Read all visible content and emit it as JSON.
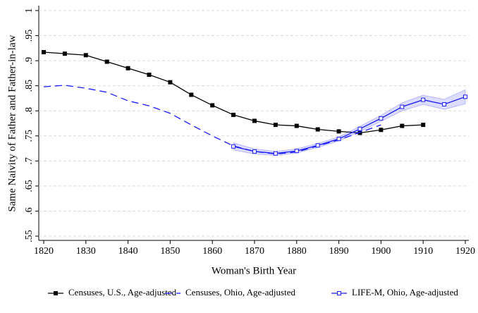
{
  "chart_data": {
    "type": "line",
    "xlabel": "Woman's Birth Year",
    "ylabel": "Same Naivity of Father and Father-in-law",
    "xlim": [
      1820,
      1920
    ],
    "xticks": [
      1820,
      1830,
      1840,
      1850,
      1860,
      1870,
      1880,
      1890,
      1900,
      1910,
      1920
    ],
    "ylim": [
      0.55,
      1
    ],
    "yticks": [
      {
        "value": 0.55,
        "label": ".55"
      },
      {
        "value": 0.6,
        "label": ".6"
      },
      {
        "value": 0.65,
        "label": ".65"
      },
      {
        "value": 0.7,
        "label": ".7"
      },
      {
        "value": 0.75,
        "label": ".75"
      },
      {
        "value": 0.8,
        "label": ".8"
      },
      {
        "value": 0.85,
        "label": ".85"
      },
      {
        "value": 0.9,
        "label": ".9"
      },
      {
        "value": 0.95,
        "label": ".95"
      },
      1
    ],
    "grid": true,
    "legend": "bottom",
    "series": [
      {
        "name": "Censuses, U.S., Age-adjusted",
        "color": "#000000",
        "marker": "square",
        "dashed": false,
        "x": [
          1820,
          1825,
          1830,
          1835,
          1840,
          1845,
          1850,
          1855,
          1860,
          1865,
          1870,
          1875,
          1880,
          1885,
          1890,
          1895,
          1900,
          1905,
          1910
        ],
        "values": [
          0.917,
          0.914,
          0.911,
          0.898,
          0.885,
          0.872,
          0.857,
          0.832,
          0.811,
          0.792,
          0.78,
          0.772,
          0.77,
          0.763,
          0.759,
          0.756,
          0.762,
          0.77,
          0.772
        ]
      },
      {
        "name": "Censuses, Ohio, Age-adjusted",
        "color": "#1a1aff",
        "marker": null,
        "dashed": true,
        "x": [
          1820,
          1825,
          1830,
          1835,
          1840,
          1845,
          1850,
          1855,
          1860,
          1865,
          1870,
          1875,
          1880,
          1885,
          1890,
          1895,
          1900
        ],
        "values": [
          0.848,
          0.851,
          0.845,
          0.837,
          0.82,
          0.81,
          0.795,
          0.772,
          0.75,
          0.73,
          0.719,
          0.714,
          0.718,
          0.73,
          0.742,
          0.757,
          0.772
        ]
      },
      {
        "name": "LIFE-M, Ohio, Age-adjusted",
        "color": "#1a1aff",
        "marker": "hollow-square",
        "dashed": false,
        "x": [
          1865,
          1870,
          1875,
          1880,
          1885,
          1890,
          1895,
          1900,
          1905,
          1910,
          1915,
          1920
        ],
        "values": [
          0.729,
          0.719,
          0.715,
          0.72,
          0.731,
          0.744,
          0.764,
          0.785,
          0.808,
          0.822,
          0.813,
          0.828
        ],
        "lower": [
          0.722,
          0.714,
          0.711,
          0.716,
          0.727,
          0.74,
          0.759,
          0.779,
          0.8,
          0.813,
          0.803,
          0.814
        ],
        "upper": [
          0.736,
          0.724,
          0.719,
          0.724,
          0.735,
          0.748,
          0.769,
          0.791,
          0.816,
          0.831,
          0.823,
          0.842
        ]
      }
    ]
  }
}
